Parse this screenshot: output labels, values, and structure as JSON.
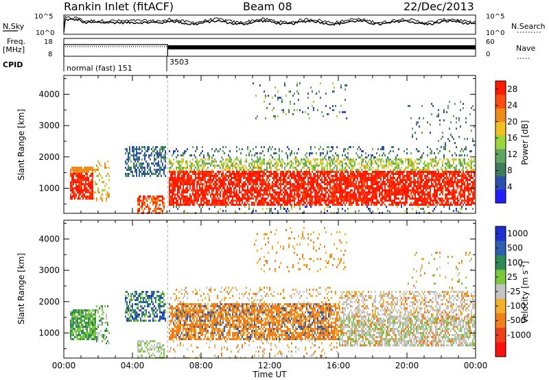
{
  "header": {
    "station": "Rankin Inlet (fitACF)",
    "beam": "Beam 08",
    "date": "22/Dec/2013"
  },
  "aux_panels": {
    "nsky_label": "N.Sky",
    "nsearch_label": "N.Search",
    "nsky_ticks": [
      "10^5",
      "10^0"
    ],
    "nsearch_ticks": [
      "10^5",
      "10^0"
    ],
    "freq_label": "Freq.",
    "freq_unit": "[MHz]",
    "freq_ticks": [
      "18",
      "8"
    ],
    "nave_label": "Nave",
    "nave_ticks": [
      "60",
      "0"
    ],
    "cpid_label": "CPID",
    "cpid_segments": [
      "normal (fast) 151",
      "3503"
    ]
  },
  "colors": {
    "power": [
      "#1f1fff",
      "#2a4fb0",
      "#3f7d5a",
      "#5fa760",
      "#9bd63c",
      "#f0c020",
      "#f08a18",
      "#ff4a10",
      "#ff1a00"
    ],
    "velocity": [
      "#2030d0",
      "#2c5fae",
      "#2f8a55",
      "#7cc83c",
      "#c4c4c4",
      "#f3b02a",
      "#f0801c",
      "#f0401a",
      "#ff1010"
    ]
  },
  "chart_data": [
    {
      "type": "heatmap",
      "title": "",
      "xlabel": "",
      "ylabel": "Slant Range [km]",
      "x_ticks": [
        "00:00",
        "04:00",
        "08:00",
        "12:00",
        "16:00",
        "20:00",
        "00:00"
      ],
      "xlim_hours": [
        0,
        24
      ],
      "y_ticks": [
        1000,
        2000,
        3000,
        4000
      ],
      "ylim": [
        200,
        4600
      ],
      "colorbar": {
        "label": "Power [dB]",
        "ticks": [
          4,
          8,
          12,
          16,
          20,
          24,
          28
        ],
        "range": [
          0,
          30
        ]
      },
      "features": [
        {
          "start": 0.3,
          "end": 1.7,
          "range_km": [
            700,
            1700
          ],
          "value": "28+"
        },
        {
          "start": 3.5,
          "end": 5.9,
          "range_km": [
            1400,
            2400
          ],
          "value": "4-12"
        },
        {
          "start": 6.0,
          "end": 24.0,
          "range_km": [
            500,
            1600
          ],
          "value": "24-30"
        },
        {
          "start": 6.0,
          "end": 24.0,
          "range_km": [
            1500,
            2000
          ],
          "value": "12-20"
        },
        {
          "start": 11.0,
          "end": 16.5,
          "range_km": [
            3200,
            4400
          ],
          "value": "4-12"
        }
      ]
    },
    {
      "type": "heatmap",
      "title": "",
      "xlabel": "Time UT",
      "ylabel": "Slant Range [km]",
      "x_ticks": [
        "00:00",
        "04:00",
        "08:00",
        "12:00",
        "16:00",
        "20:00",
        "00:00"
      ],
      "xlim_hours": [
        0,
        24
      ],
      "y_ticks": [
        1000,
        2000,
        3000,
        4000
      ],
      "ylim": [
        200,
        4600
      ],
      "colorbar": {
        "label": "Velocity [m s^-1]",
        "ticks": [
          "1000",
          "500",
          "100",
          "25",
          "-25",
          "-100",
          "-500",
          "-1000"
        ]
      },
      "features": [
        {
          "start": 0.3,
          "end": 2.5,
          "range_km": [
            800,
            1900
          ],
          "value": "25 to 500"
        },
        {
          "start": 3.5,
          "end": 5.9,
          "range_km": [
            1400,
            2400
          ],
          "value": "100 to 1000"
        },
        {
          "start": 6.0,
          "end": 16.0,
          "range_km": [
            800,
            2000
          ],
          "value": "-100 to -500"
        },
        {
          "start": 16.0,
          "end": 24.0,
          "range_km": [
            600,
            2400
          ],
          "value": "-25 to 25"
        },
        {
          "start": 11.0,
          "end": 16.5,
          "range_km": [
            3000,
            4400
          ],
          "value": "-100 to -500"
        }
      ]
    }
  ]
}
